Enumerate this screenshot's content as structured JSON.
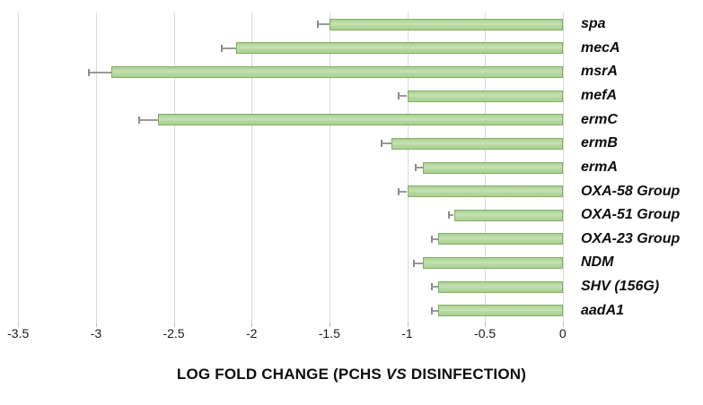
{
  "chart_data": {
    "type": "bar",
    "orientation": "horizontal",
    "title": "",
    "xlabel": "LOG FOLD CHANGE (PCHS VS DISINFECTION)",
    "xlabel_parts": {
      "prefix": "LOG FOLD CHANGE (PCHS ",
      "italic": "VS",
      "suffix": " DISINFECTION)"
    },
    "ylabel": "",
    "categories": [
      "spa",
      "mecA",
      "msrA",
      "mefA",
      "ermC",
      "ermB",
      "ermA",
      "OXA-58 Group",
      "OXA-51 Group",
      "OXA-23 Group",
      "NDM",
      "SHV (156G)",
      "aadA1"
    ],
    "values": [
      -1.5,
      -2.1,
      -2.9,
      -1.0,
      -2.6,
      -1.1,
      -0.9,
      -1.0,
      -0.7,
      -0.8,
      -0.9,
      -0.8,
      -0.8
    ],
    "errors": [
      0.08,
      0.1,
      0.15,
      0.06,
      0.13,
      0.07,
      0.05,
      0.06,
      0.04,
      0.05,
      0.06,
      0.05,
      0.05
    ],
    "error_direction": "negative-only",
    "x_ticks": [
      -3.5,
      -3,
      -2.5,
      -2,
      -1.5,
      -1,
      -0.5,
      0
    ],
    "x_tick_labels": [
      "-3.5",
      "-3",
      "-2.5",
      "-2",
      "-1.5",
      "-1",
      "-0.5",
      "0"
    ],
    "xlim": [
      -3.5,
      0
    ],
    "grid": true,
    "legend": "none",
    "category_label_side": "right",
    "bar_fill_color": "#b7dba6",
    "bar_border_color": "#84ad63",
    "gridline_color": "#d9d9d9",
    "error_bar_color": "#9a9a9a",
    "text_color": "#0d0d0d"
  }
}
